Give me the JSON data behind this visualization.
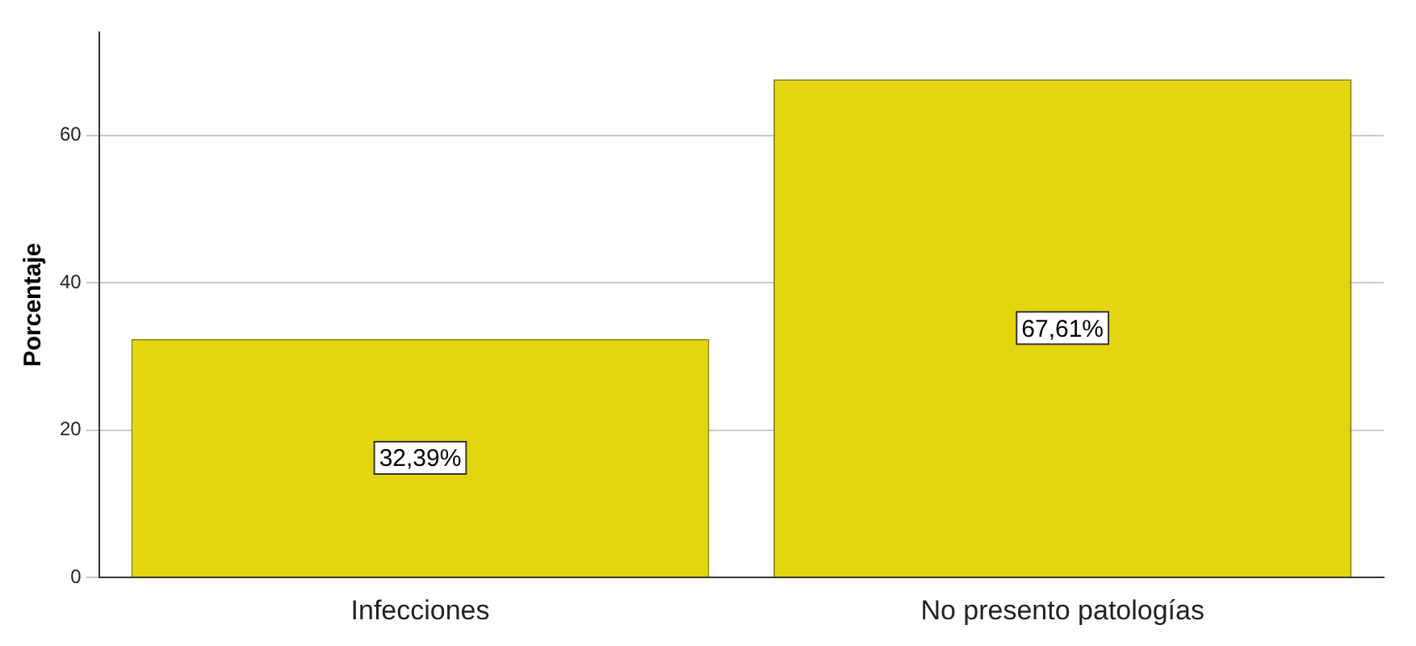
{
  "chart_data": {
    "type": "bar",
    "ylabel": "Porcentaje",
    "categories": [
      "Infecciones",
      "No presento patologías"
    ],
    "values": [
      32.39,
      67.61
    ],
    "color": "#e3d60f",
    "value_labels": [
      "32,39%",
      "67,61%"
    ],
    "ylim": [
      0,
      74
    ],
    "yticks": [
      0,
      20,
      40,
      60
    ],
    "grid": "y",
    "legend": false
  }
}
